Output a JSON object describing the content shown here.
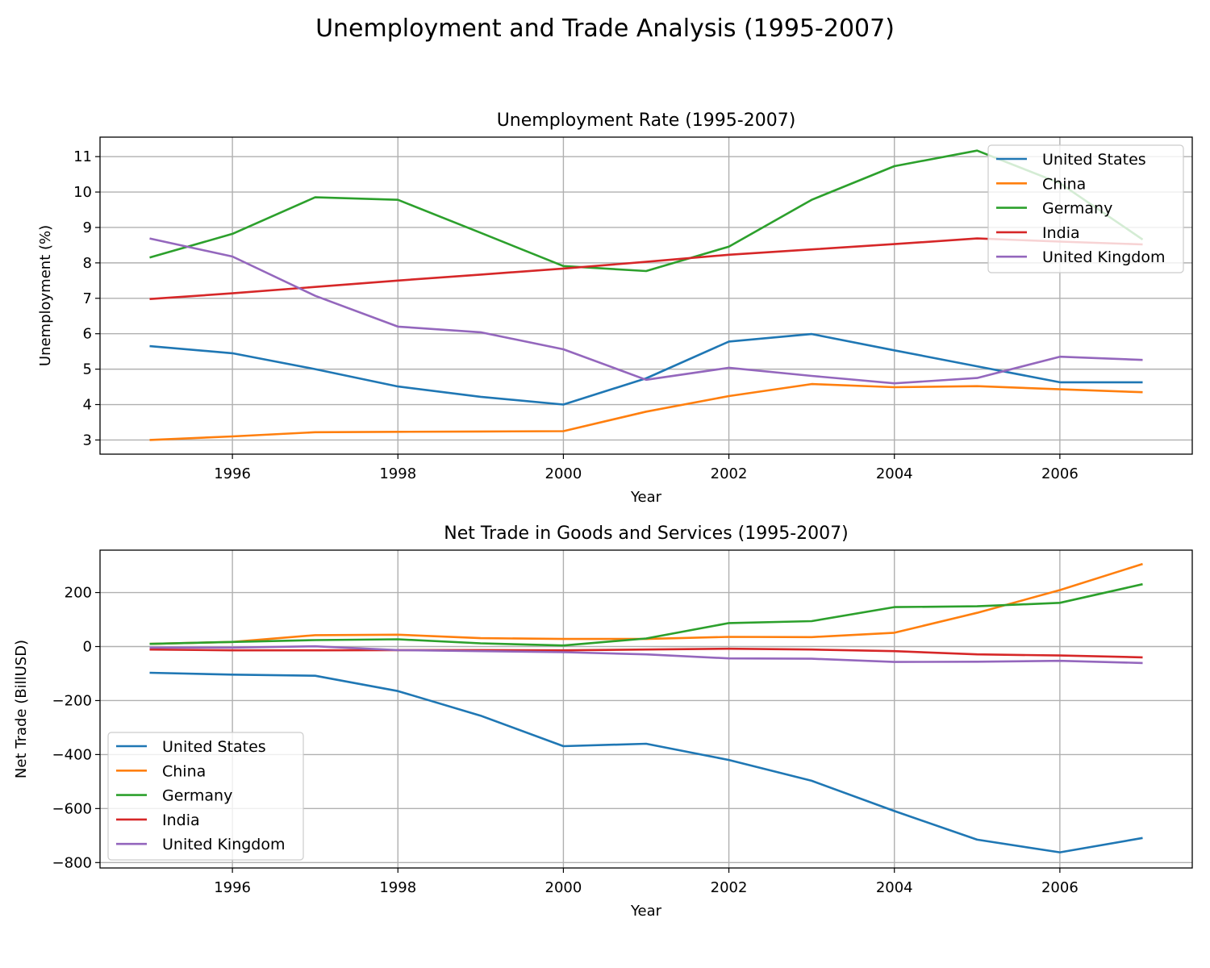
{
  "figure_title": "Unemployment and Trade Analysis (1995-2007)",
  "colors": {
    "United States": "#1f77b4",
    "China": "#ff7f0e",
    "Germany": "#2ca02c",
    "India": "#d62728",
    "United Kingdom": "#9467bd",
    "grid": "#b0b0b0"
  },
  "chart_data": [
    {
      "type": "line",
      "title": "Unemployment Rate (1995-2007)",
      "xlabel": "Year",
      "ylabel": "Unemployment (%)",
      "x": [
        1995,
        1996,
        1997,
        1998,
        1999,
        2000,
        2001,
        2002,
        2003,
        2004,
        2005,
        2006,
        2007
      ],
      "xlim": [
        1994.4,
        2007.6
      ],
      "ylim": [
        2.6,
        11.55
      ],
      "xticks": [
        "1996",
        "1998",
        "2000",
        "2002",
        "2004",
        "2006"
      ],
      "yticks": [
        "3",
        "4",
        "5",
        "6",
        "7",
        "8",
        "9",
        "10",
        "11"
      ],
      "grid": true,
      "legend_position": "top-right",
      "series": [
        {
          "name": "United States",
          "values": [
            5.65,
            5.45,
            5.0,
            4.51,
            4.22,
            4.0,
            4.74,
            5.78,
            5.99,
            5.53,
            5.08,
            4.63,
            4.63
          ]
        },
        {
          "name": "China",
          "values": [
            3.0,
            3.1,
            3.22,
            3.23,
            3.24,
            3.25,
            3.8,
            4.24,
            4.58,
            4.49,
            4.52,
            4.43,
            4.35
          ]
        },
        {
          "name": "Germany",
          "values": [
            8.15,
            8.82,
            9.85,
            9.78,
            8.85,
            7.91,
            7.77,
            8.46,
            9.78,
            10.73,
            11.17,
            10.25,
            8.66
          ]
        },
        {
          "name": "India",
          "values": [
            6.98,
            7.14,
            7.32,
            7.5,
            7.67,
            7.84,
            8.03,
            8.23,
            8.38,
            8.53,
            8.69,
            8.6,
            8.52
          ]
        },
        {
          "name": "United Kingdom",
          "values": [
            8.69,
            8.18,
            7.07,
            6.2,
            6.04,
            5.56,
            4.7,
            5.04,
            4.81,
            4.6,
            4.75,
            5.35,
            5.26
          ]
        }
      ]
    },
    {
      "type": "line",
      "title": "Net Trade in Goods and Services (1995-2007)",
      "xlabel": "Year",
      "ylabel": "Net Trade (BillUSD)",
      "x": [
        1995,
        1996,
        1997,
        1998,
        1999,
        2000,
        2001,
        2002,
        2003,
        2004,
        2005,
        2006,
        2007
      ],
      "xlim": [
        1994.4,
        2007.6
      ],
      "ylim": [
        -820,
        357
      ],
      "xticks": [
        "1996",
        "1998",
        "2000",
        "2002",
        "2004",
        "2006"
      ],
      "yticks": [
        "200",
        "0",
        "−200",
        "−400",
        "−600",
        "−800"
      ],
      "ytick_values": [
        200,
        0,
        -200,
        -400,
        -600,
        -800
      ],
      "grid": true,
      "legend_position": "bottom-left",
      "series": [
        {
          "name": "United States",
          "values": [
            -97,
            -104,
            -108,
            -165,
            -256,
            -369,
            -360,
            -420,
            -497,
            -609,
            -715,
            -762,
            -709
          ]
        },
        {
          "name": "China",
          "values": [
            10,
            17,
            42,
            44,
            31,
            28,
            28,
            36,
            35,
            51,
            125,
            209,
            306
          ]
        },
        {
          "name": "Germany",
          "values": [
            10,
            17,
            24,
            27,
            12,
            4,
            30,
            87,
            94,
            146,
            149,
            162,
            231
          ]
        },
        {
          "name": "India",
          "values": [
            -11,
            -14,
            -14,
            -13,
            -13,
            -14,
            -11,
            -8,
            -11,
            -17,
            -29,
            -33,
            -40
          ]
        },
        {
          "name": "United Kingdom",
          "values": [
            -4,
            -4,
            1,
            -13,
            -17,
            -21,
            -29,
            -44,
            -45,
            -57,
            -56,
            -53,
            -61
          ]
        }
      ]
    }
  ]
}
